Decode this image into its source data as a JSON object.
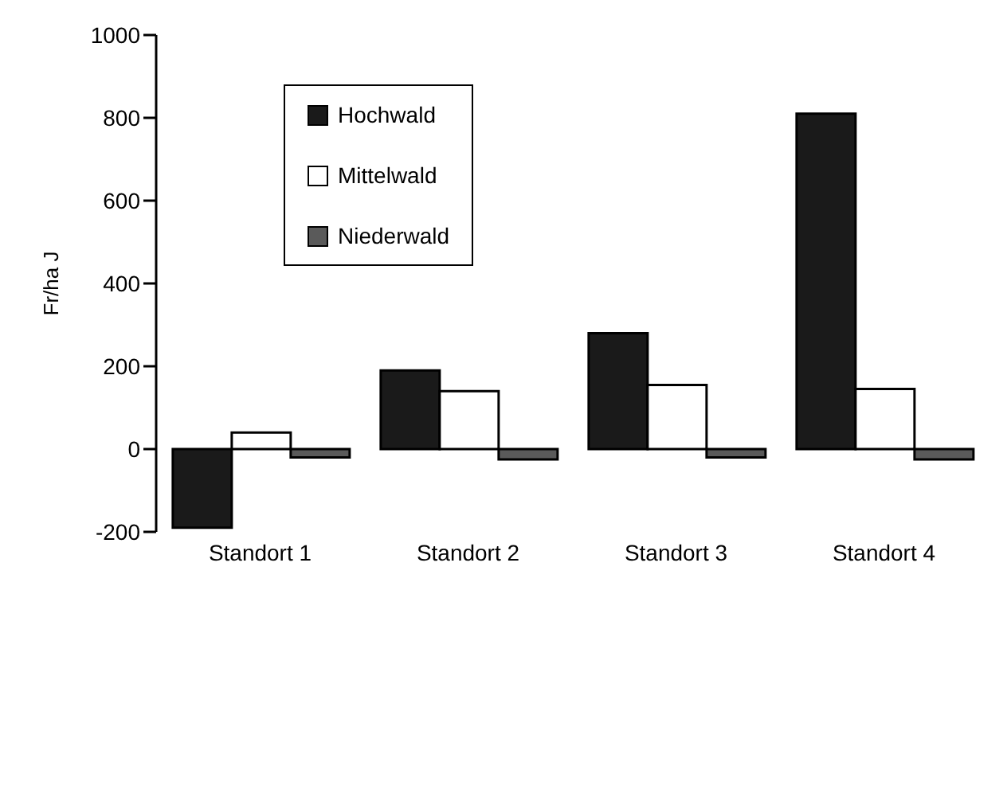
{
  "chart_data": {
    "type": "bar",
    "ylabel": "Fr/ha J",
    "categories": [
      "Standort 1",
      "Standort 2",
      "Standort 3",
      "Standort 4"
    ],
    "series": [
      {
        "name": "Hochwald",
        "color": "#1a1a1a",
        "values": [
          -190,
          190,
          280,
          810
        ]
      },
      {
        "name": "Mittelwald",
        "color": "#ffffff",
        "values": [
          40,
          140,
          155,
          145
        ]
      },
      {
        "name": "Niederwald",
        "color": "#5a5a5a",
        "values": [
          -20,
          -25,
          -20,
          -25
        ]
      }
    ],
    "ylim": [
      -200,
      1000
    ],
    "yticks": [
      -200,
      0,
      200,
      400,
      600,
      800,
      1000
    ],
    "grid": false,
    "legend": "top left"
  }
}
